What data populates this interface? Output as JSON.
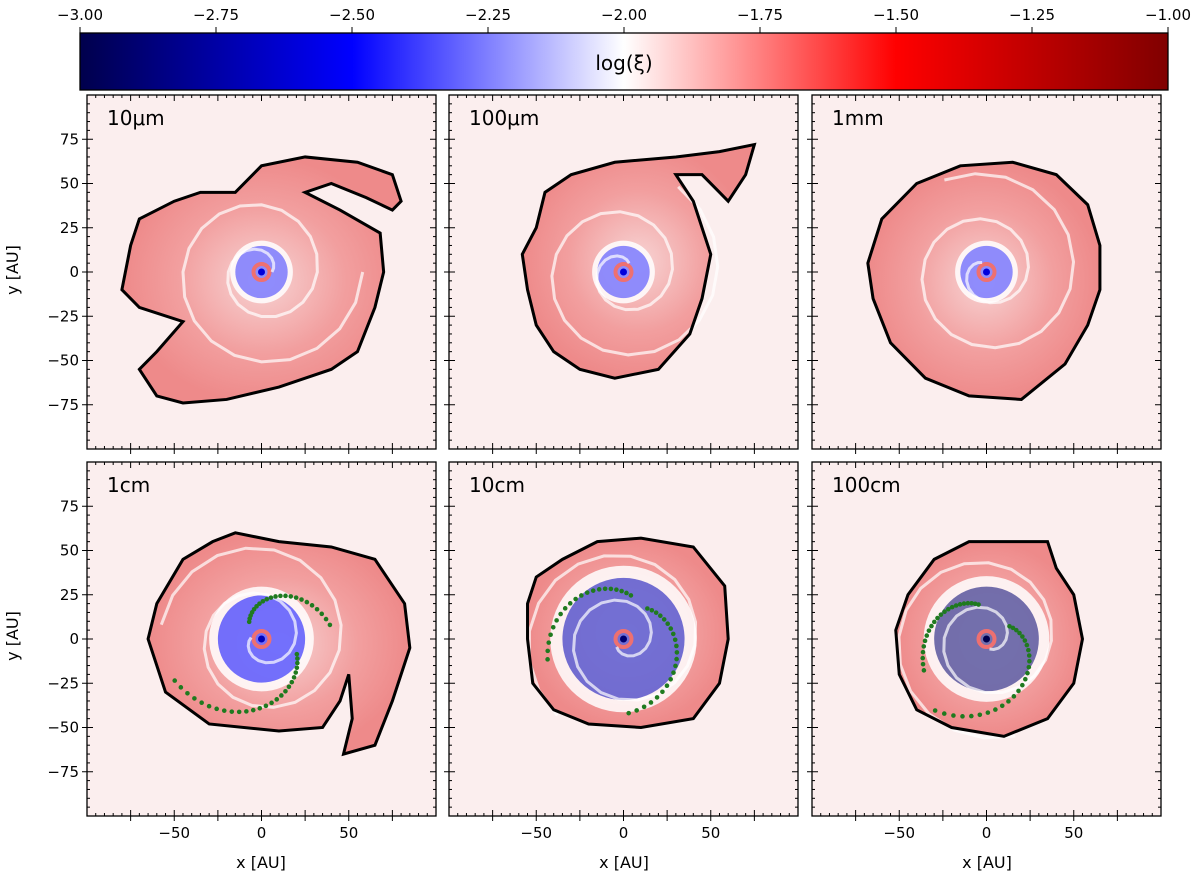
{
  "colorbar": {
    "label": "log(ξ)",
    "min": -3.0,
    "max": -1.0,
    "ticks": [
      "−3.00",
      "−2.75",
      "−2.50",
      "−2.25",
      "−2.00",
      "−1.75",
      "−1.50",
      "−1.25",
      "−1.00"
    ],
    "cmap": "seismic"
  },
  "colors": {
    "contour": "#000000",
    "clump_dots": "#1f7a1f",
    "background": "#fbeeee"
  },
  "axes": {
    "xlabel": "x [AU]",
    "ylabel": "y [AU]",
    "xlim": [
      -100,
      100
    ],
    "ylim": [
      -100,
      100
    ],
    "xticks": [
      "−50",
      "0",
      "50"
    ],
    "yticks": [
      "75",
      "50",
      "25",
      "0",
      "−25",
      "−50",
      "−75"
    ]
  },
  "chart_data": {
    "type": "heatmap",
    "quantity": "log(ξ)",
    "x_unit": "AU",
    "y_unit": "AU",
    "panels": [
      {
        "label": "10μm",
        "ring_radius": 15,
        "center_value": -2.4,
        "outer_radius_approx": 75,
        "has_clumps": false
      },
      {
        "label": "100μm",
        "ring_radius": 15,
        "center_value": -2.4,
        "outer_radius_approx": 70,
        "has_clumps": false
      },
      {
        "label": "1mm",
        "ring_radius": 15,
        "center_value": -2.4,
        "outer_radius_approx": 70,
        "has_clumps": false
      },
      {
        "label": "1cm",
        "ring_radius": 25,
        "center_value": -2.5,
        "outer_radius_approx": 70,
        "has_clumps": true
      },
      {
        "label": "10cm",
        "ring_radius": 35,
        "center_value": -2.7,
        "outer_radius_approx": 65,
        "has_clumps": true
      },
      {
        "label": "100cm",
        "ring_radius": 30,
        "center_value": -2.9,
        "outer_radius_approx": 60,
        "has_clumps": true
      }
    ]
  }
}
